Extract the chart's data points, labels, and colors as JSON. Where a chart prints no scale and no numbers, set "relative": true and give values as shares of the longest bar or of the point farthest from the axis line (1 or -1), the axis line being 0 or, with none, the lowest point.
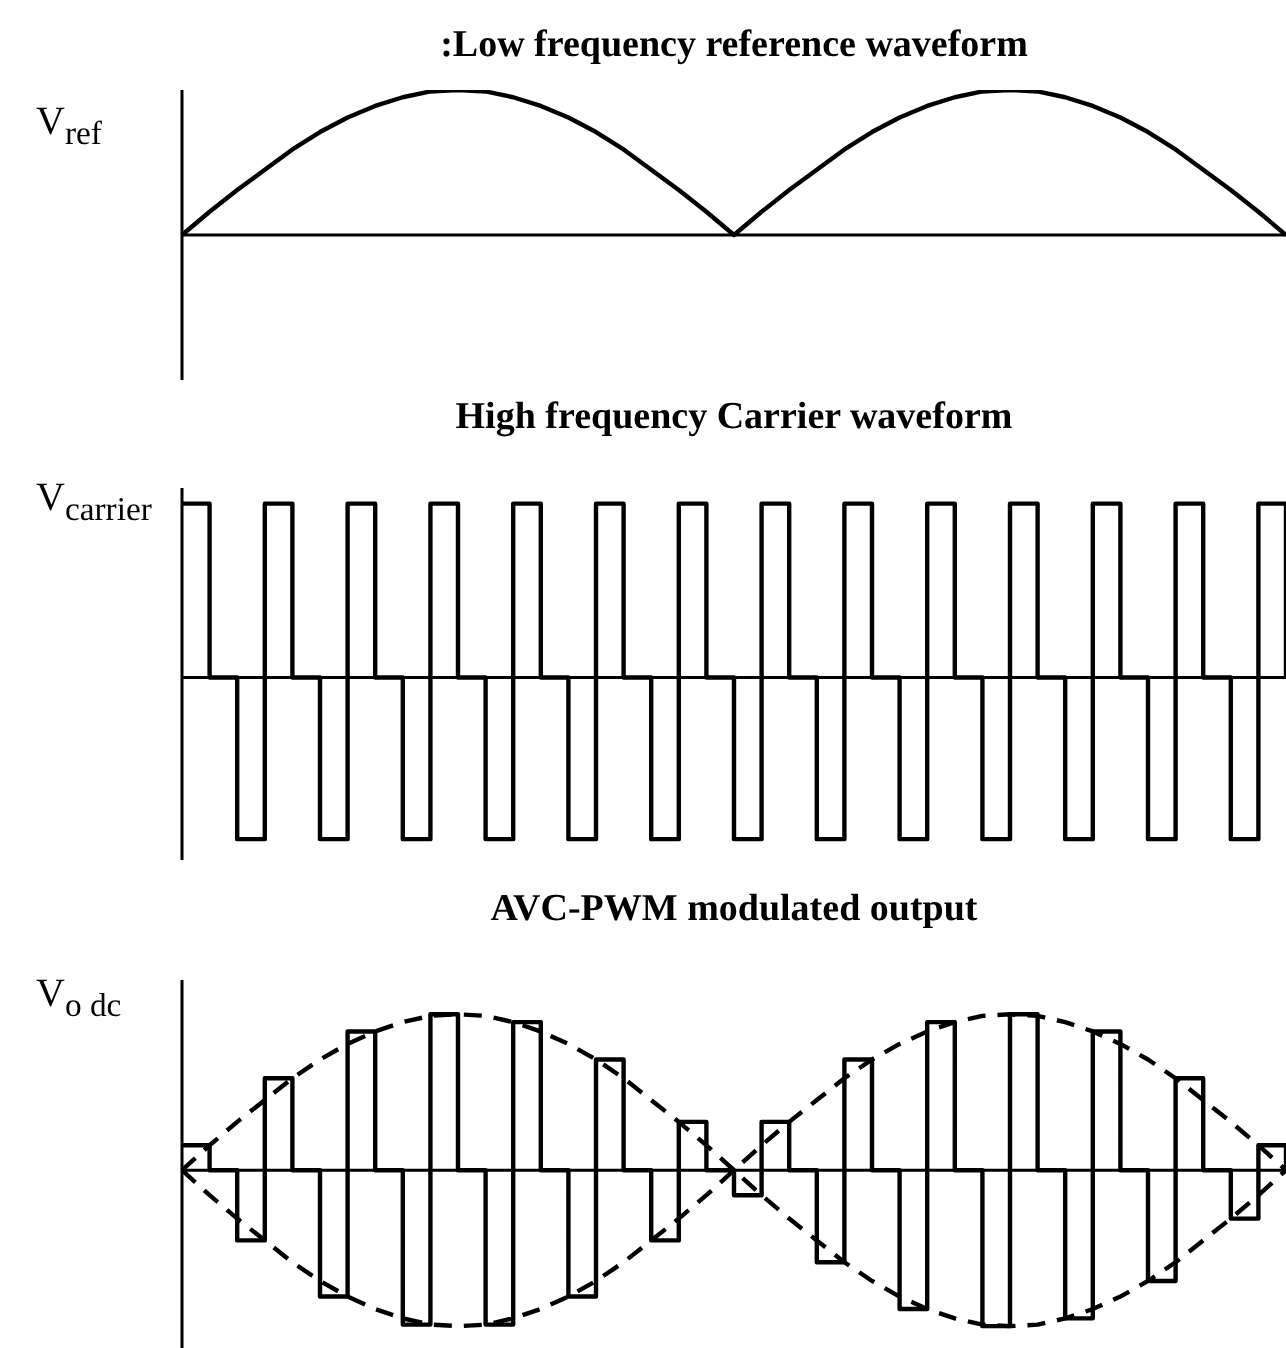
{
  "chart_data": [
    {
      "type": "line",
      "title": ":Low frequency reference waveform",
      "ylabel": "V$_{ref}$",
      "relative": true,
      "marker": "none",
      "color": "#000000",
      "categories": [
        null,
        null,
        null,
        null,
        null,
        null,
        null,
        null,
        null,
        null,
        null,
        null,
        null,
        null,
        null,
        null,
        null,
        null,
        null,
        null,
        null,
        null,
        null,
        null,
        null,
        null,
        null,
        null,
        null,
        null,
        null,
        null,
        null,
        null,
        null,
        null,
        null,
        null,
        null,
        null,
        null
      ],
      "values": [
        0,
        0.16,
        0.31,
        0.45,
        0.59,
        0.71,
        0.81,
        0.89,
        0.95,
        0.99,
        1,
        0.99,
        0.95,
        0.89,
        0.81,
        0.71,
        0.59,
        0.45,
        0.31,
        0.16,
        0,
        0.16,
        0.31,
        0.45,
        0.59,
        0.71,
        0.81,
        0.89,
        0.95,
        0.99,
        1,
        0.99,
        0.95,
        0.89,
        0.81,
        0.71,
        0.59,
        0.45,
        0.31,
        0.16,
        0
      ]
    },
    {
      "type": "step",
      "title": "High frequency Carrier waveform",
      "ylabel": "V$_{carrier}$",
      "relative": true,
      "marker": "none",
      "color": "#000000",
      "categories": [
        null,
        null,
        null,
        null,
        null,
        null,
        null,
        null,
        null,
        null,
        null,
        null,
        null,
        null,
        null,
        null,
        null,
        null,
        null,
        null,
        null,
        null,
        null,
        null,
        null,
        null,
        null,
        null,
        null,
        null,
        null,
        null,
        null,
        null,
        null,
        null,
        null,
        null,
        null,
        null,
        null
      ],
      "values": [
        1,
        0,
        -0.93,
        1,
        0,
        -0.93,
        1,
        0,
        -0.93,
        1,
        0,
        -0.93,
        1,
        0,
        -0.93,
        1,
        0,
        -0.93,
        1,
        0,
        -0.93,
        1,
        0,
        -0.93,
        1,
        0,
        -0.93,
        1,
        0,
        -0.93,
        1,
        0,
        -0.93,
        1,
        0,
        -0.93,
        1,
        0,
        -0.93,
        1,
        0
      ]
    },
    {
      "type": "line",
      "title": "AVC-PWM modulated output",
      "ylabel": "V$_{o dc}$",
      "relative": true,
      "marker": "none",
      "categories": [
        null,
        null,
        null,
        null,
        null,
        null,
        null,
        null,
        null,
        null,
        null,
        null,
        null,
        null,
        null,
        null,
        null,
        null,
        null,
        null,
        null,
        null,
        null,
        null,
        null,
        null,
        null,
        null,
        null,
        null,
        null,
        null,
        null,
        null,
        null,
        null,
        null,
        null,
        null,
        null,
        null
      ],
      "series": [
        {
          "line_style": "dashed",
          "color": "#000000",
          "values": [
            0,
            0.16,
            0.31,
            0.45,
            0.59,
            0.71,
            0.81,
            0.89,
            0.95,
            0.99,
            1,
            0.99,
            0.95,
            0.89,
            0.81,
            0.71,
            0.59,
            0.45,
            0.31,
            0.16,
            0,
            0.16,
            0.31,
            0.45,
            0.59,
            0.71,
            0.81,
            0.89,
            0.95,
            0.99,
            1,
            0.99,
            0.95,
            0.89,
            0.81,
            0.71,
            0.59,
            0.45,
            0.31,
            0.16,
            0
          ]
        },
        {
          "line_style": "dashed",
          "color": "#000000",
          "values": [
            0,
            -0.16,
            -0.31,
            -0.45,
            -0.59,
            -0.71,
            -0.81,
            -0.89,
            -0.95,
            -0.99,
            -1,
            -0.99,
            -0.95,
            -0.89,
            -0.81,
            -0.71,
            -0.59,
            -0.45,
            -0.31,
            -0.16,
            0,
            -0.16,
            -0.31,
            -0.45,
            -0.59,
            -0.71,
            -0.81,
            -0.89,
            -0.95,
            -0.99,
            -1,
            -0.99,
            -0.95,
            -0.89,
            -0.81,
            -0.71,
            -0.59,
            -0.45,
            -0.31,
            -0.16,
            0
          ]
        },
        {
          "type": "step",
          "line_style": "solid",
          "color": "#000000",
          "values": [
            0.16,
            0,
            -0.45,
            0.59,
            0,
            -0.81,
            0.89,
            0,
            -0.99,
            1,
            0,
            -0.99,
            0.95,
            0,
            -0.81,
            0.71,
            0,
            -0.45,
            0.31,
            0,
            -0.16,
            0.31,
            0,
            -0.59,
            0.71,
            0,
            -0.89,
            0.95,
            0,
            -1,
            1,
            0,
            -0.95,
            0.89,
            0,
            -0.71,
            0.59,
            0,
            -0.31,
            0.16,
            0
          ]
        }
      ]
    }
  ]
}
